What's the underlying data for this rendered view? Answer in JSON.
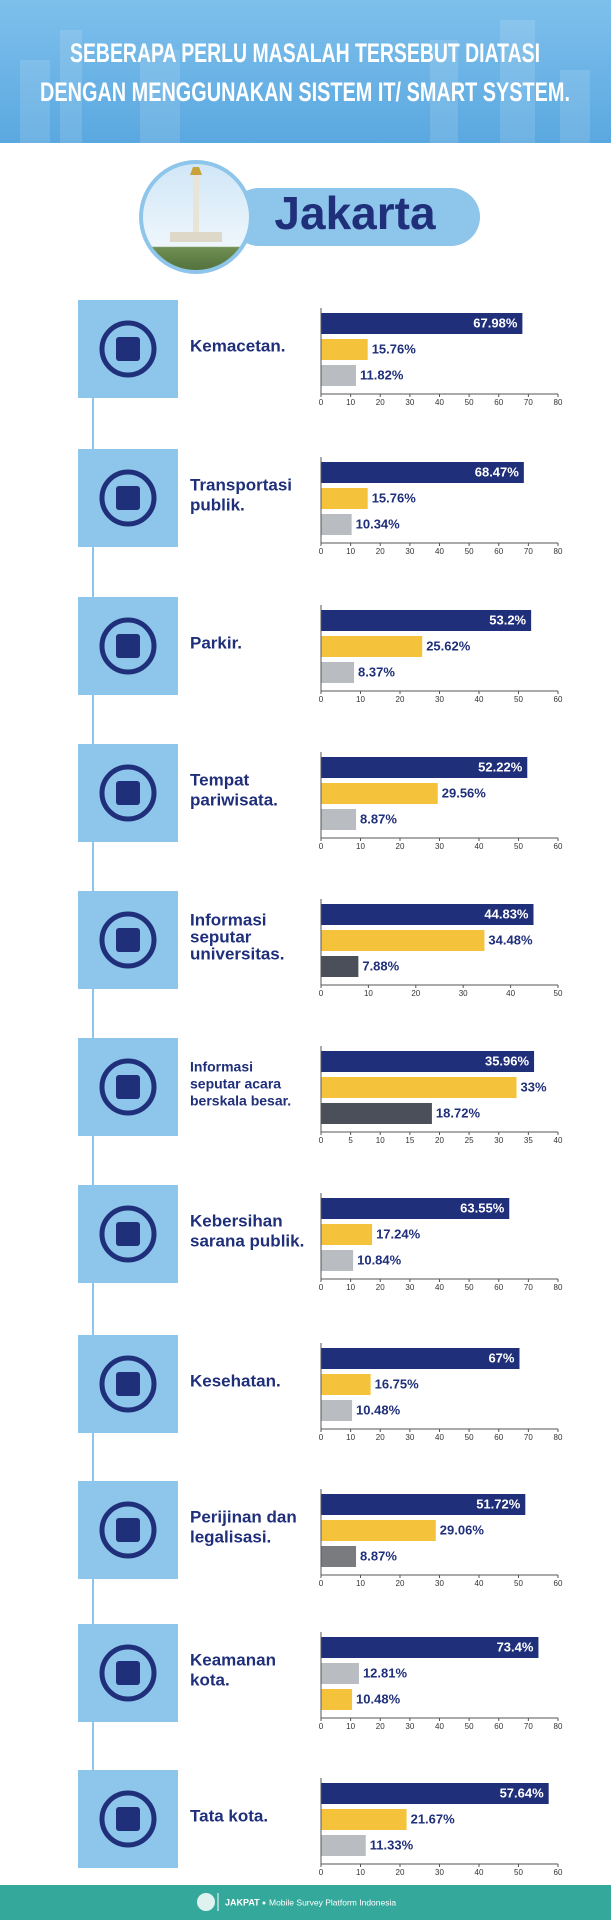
{
  "header": {
    "title_lines": [
      "SEBERAPA PERLU MASALAH TERSEBUT DIATASI",
      "DENGAN MENGGUNAKAN SISTEM IT/ SMART SYSTEM."
    ]
  },
  "city": "Jakarta",
  "chart_data": [
    {
      "type": "bar",
      "orientation": "horizontal",
      "label_lines": [
        "Kemacetan."
      ],
      "values": [
        67.98,
        15.76,
        11.82
      ],
      "value_labels": [
        "67.98%",
        "15.76%",
        "11.82%"
      ],
      "colors": [
        "#1f2f7a",
        "#f5c33b",
        "#b9bcc1"
      ],
      "xlim": [
        0,
        80
      ],
      "xticks": [
        0,
        10,
        20,
        30,
        40,
        50,
        60,
        70,
        80
      ]
    },
    {
      "type": "bar",
      "orientation": "horizontal",
      "label_lines": [
        "Transportasi",
        "publik."
      ],
      "values": [
        68.47,
        15.76,
        10.34
      ],
      "value_labels": [
        "68.47%",
        "15.76%",
        "10.34%"
      ],
      "colors": [
        "#1f2f7a",
        "#f5c33b",
        "#b9bcc1"
      ],
      "xlim": [
        0,
        80
      ],
      "xticks": [
        0,
        10,
        20,
        30,
        40,
        50,
        60,
        70,
        80
      ]
    },
    {
      "type": "bar",
      "orientation": "horizontal",
      "label_lines": [
        "Parkir."
      ],
      "values": [
        53.2,
        25.62,
        8.37
      ],
      "value_labels": [
        "53.2%",
        "25.62%",
        "8.37%"
      ],
      "colors": [
        "#1f2f7a",
        "#f5c33b",
        "#b9bcc1"
      ],
      "xlim": [
        0,
        60
      ],
      "xticks": [
        0,
        10,
        20,
        30,
        40,
        50,
        60
      ]
    },
    {
      "type": "bar",
      "orientation": "horizontal",
      "label_lines": [
        "Tempat",
        "pariwisata."
      ],
      "values": [
        52.22,
        29.56,
        8.87
      ],
      "value_labels": [
        "52.22%",
        "29.56%",
        "8.87%"
      ],
      "colors": [
        "#1f2f7a",
        "#f5c33b",
        "#b9bcc1"
      ],
      "xlim": [
        0,
        60
      ],
      "xticks": [
        0,
        10,
        20,
        30,
        40,
        50,
        60
      ]
    },
    {
      "type": "bar",
      "orientation": "horizontal",
      "label_lines": [
        "Informasi",
        "seputar",
        "universitas."
      ],
      "values": [
        44.83,
        34.48,
        7.88
      ],
      "value_labels": [
        "44.83%",
        "34.48%",
        "7.88%"
      ],
      "colors": [
        "#1f2f7a",
        "#f5c33b",
        "#4a4f5a"
      ],
      "xlim": [
        0,
        50
      ],
      "xticks": [
        0,
        10,
        20,
        30,
        40,
        50
      ]
    },
    {
      "type": "bar",
      "orientation": "horizontal",
      "label_lines": [
        "Informasi",
        "seputar acara",
        "berskala besar."
      ],
      "values": [
        35.96,
        33,
        18.72
      ],
      "value_labels": [
        "35.96%",
        "33%",
        "18.72%"
      ],
      "colors": [
        "#1f2f7a",
        "#f5c33b",
        "#4a4f5a"
      ],
      "xlim": [
        0,
        40
      ],
      "xticks": [
        0,
        5,
        10,
        15,
        20,
        25,
        30,
        35,
        40
      ]
    },
    {
      "type": "bar",
      "orientation": "horizontal",
      "label_lines": [
        "Kebersihan",
        "sarana publik."
      ],
      "values": [
        63.55,
        17.24,
        10.84
      ],
      "value_labels": [
        "63.55%",
        "17.24%",
        "10.84%"
      ],
      "colors": [
        "#1f2f7a",
        "#f5c33b",
        "#b9bcc1"
      ],
      "xlim": [
        0,
        80
      ],
      "xticks": [
        0,
        10,
        20,
        30,
        40,
        50,
        60,
        70,
        80
      ]
    },
    {
      "type": "bar",
      "orientation": "horizontal",
      "label_lines": [
        "Kesehatan."
      ],
      "values": [
        67,
        16.75,
        10.48
      ],
      "value_labels": [
        "67%",
        "16.75%",
        "10.48%"
      ],
      "colors": [
        "#1f2f7a",
        "#f5c33b",
        "#b9bcc1"
      ],
      "xlim": [
        0,
        80
      ],
      "xticks": [
        0,
        10,
        20,
        30,
        40,
        50,
        60,
        70,
        80
      ]
    },
    {
      "type": "bar",
      "orientation": "horizontal",
      "label_lines": [
        "Perijinan dan",
        "legalisasi."
      ],
      "values": [
        51.72,
        29.06,
        8.87
      ],
      "value_labels": [
        "51.72%",
        "29.06%",
        "8.87%"
      ],
      "colors": [
        "#1f2f7a",
        "#f5c33b",
        "#7a7b7e"
      ],
      "xlim": [
        0,
        60
      ],
      "xticks": [
        0,
        10,
        20,
        30,
        40,
        50,
        60
      ]
    },
    {
      "type": "bar",
      "orientation": "horizontal",
      "label_lines": [
        "Keamanan",
        "kota."
      ],
      "values": [
        73.4,
        12.81,
        10.48
      ],
      "value_labels": [
        "73.4%",
        "12.81%",
        "10.48%"
      ],
      "colors": [
        "#1f2f7a",
        "#b9bcc1",
        "#f5c33b"
      ],
      "xlim": [
        0,
        80
      ],
      "xticks": [
        0,
        10,
        20,
        30,
        40,
        50,
        60,
        70,
        80
      ]
    },
    {
      "type": "bar",
      "orientation": "horizontal",
      "label_lines": [
        "Tata kota."
      ],
      "values": [
        57.64,
        21.67,
        11.33
      ],
      "value_labels": [
        "57.64%",
        "21.67%",
        "11.33%"
      ],
      "colors": [
        "#1f2f7a",
        "#f5c33b",
        "#b9bcc1"
      ],
      "xlim": [
        0,
        60
      ],
      "xticks": [
        0,
        10,
        20,
        30,
        40,
        50,
        60
      ]
    }
  ],
  "footer": {
    "brand": "JAKPAT",
    "tagline": "Mobile Survey Platform Indonesia"
  }
}
